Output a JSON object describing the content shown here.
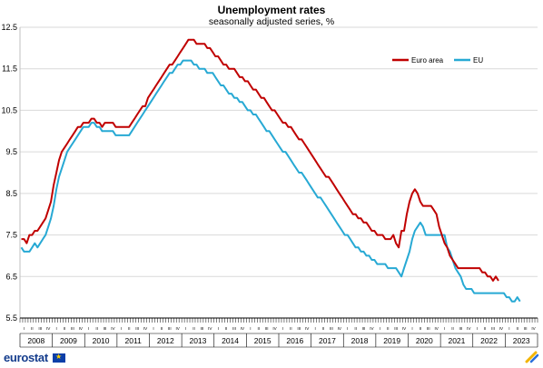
{
  "chart_data": {
    "type": "line",
    "title": "Unemployment rates",
    "subtitle": "seasonally adjusted series, %",
    "xlabel": "",
    "ylabel": "",
    "ylim": [
      5.5,
      12.5
    ],
    "yticks": [
      "12.5",
      "11.5",
      "10.5",
      "9.5",
      "8.5",
      "7.5",
      "6.5",
      "5.5"
    ],
    "grid": true,
    "legend_position": "top-right",
    "x_start": "2008-01",
    "frequency": "monthly",
    "years": [
      "2008",
      "2009",
      "2010",
      "2011",
      "2012",
      "2013",
      "2014",
      "2015",
      "2016",
      "2017",
      "2018",
      "2019",
      "2020",
      "2021",
      "2022",
      "2023"
    ],
    "quarter_labels": [
      "I",
      "II",
      "III",
      "IV"
    ],
    "series": [
      {
        "name": "Euro area",
        "color": "#c00000",
        "values": [
          7.4,
          7.4,
          7.3,
          7.5,
          7.5,
          7.6,
          7.6,
          7.7,
          7.8,
          7.9,
          8.1,
          8.3,
          8.7,
          9.0,
          9.3,
          9.5,
          9.6,
          9.7,
          9.8,
          9.9,
          10.0,
          10.1,
          10.1,
          10.2,
          10.2,
          10.2,
          10.3,
          10.3,
          10.2,
          10.2,
          10.1,
          10.2,
          10.2,
          10.2,
          10.2,
          10.1,
          10.1,
          10.1,
          10.1,
          10.1,
          10.1,
          10.2,
          10.3,
          10.4,
          10.5,
          10.6,
          10.6,
          10.8,
          10.9,
          11.0,
          11.1,
          11.2,
          11.3,
          11.4,
          11.5,
          11.6,
          11.6,
          11.7,
          11.8,
          11.9,
          12.0,
          12.1,
          12.2,
          12.2,
          12.2,
          12.1,
          12.1,
          12.1,
          12.1,
          12.0,
          12.0,
          11.9,
          11.8,
          11.8,
          11.7,
          11.6,
          11.6,
          11.5,
          11.5,
          11.5,
          11.4,
          11.3,
          11.3,
          11.2,
          11.2,
          11.1,
          11.0,
          11.0,
          10.9,
          10.8,
          10.8,
          10.7,
          10.6,
          10.5,
          10.5,
          10.4,
          10.3,
          10.2,
          10.2,
          10.1,
          10.1,
          10.0,
          9.9,
          9.8,
          9.8,
          9.7,
          9.6,
          9.5,
          9.4,
          9.3,
          9.2,
          9.1,
          9.0,
          8.9,
          8.9,
          8.8,
          8.7,
          8.6,
          8.5,
          8.4,
          8.3,
          8.2,
          8.1,
          8.0,
          8.0,
          7.9,
          7.9,
          7.8,
          7.8,
          7.7,
          7.6,
          7.6,
          7.5,
          7.5,
          7.5,
          7.4,
          7.4,
          7.4,
          7.5,
          7.3,
          7.2,
          7.6,
          7.6,
          8.0,
          8.3,
          8.5,
          8.6,
          8.5,
          8.3,
          8.2,
          8.2,
          8.2,
          8.2,
          8.1,
          8.0,
          7.7,
          7.5,
          7.3,
          7.2,
          7.0,
          6.9,
          6.8,
          6.7,
          6.7,
          6.7,
          6.7,
          6.7,
          6.7,
          6.7,
          6.7,
          6.7,
          6.6,
          6.6,
          6.5,
          6.5,
          6.4,
          6.5,
          6.4
        ]
      },
      {
        "name": "EU",
        "color": "#27a9d4",
        "values": [
          7.2,
          7.1,
          7.1,
          7.1,
          7.2,
          7.3,
          7.2,
          7.3,
          7.4,
          7.5,
          7.7,
          7.9,
          8.2,
          8.6,
          8.9,
          9.1,
          9.3,
          9.5,
          9.6,
          9.7,
          9.8,
          9.9,
          10.0,
          10.1,
          10.1,
          10.1,
          10.2,
          10.2,
          10.1,
          10.1,
          10.0,
          10.0,
          10.0,
          10.0,
          10.0,
          9.9,
          9.9,
          9.9,
          9.9,
          9.9,
          9.9,
          10.0,
          10.1,
          10.2,
          10.3,
          10.4,
          10.5,
          10.6,
          10.7,
          10.8,
          10.9,
          11.0,
          11.1,
          11.2,
          11.3,
          11.4,
          11.4,
          11.5,
          11.6,
          11.6,
          11.7,
          11.7,
          11.7,
          11.7,
          11.6,
          11.6,
          11.5,
          11.5,
          11.5,
          11.4,
          11.4,
          11.4,
          11.3,
          11.2,
          11.1,
          11.1,
          11.0,
          10.9,
          10.9,
          10.8,
          10.8,
          10.7,
          10.7,
          10.6,
          10.5,
          10.5,
          10.4,
          10.4,
          10.3,
          10.2,
          10.1,
          10.0,
          10.0,
          9.9,
          9.8,
          9.7,
          9.6,
          9.5,
          9.5,
          9.4,
          9.3,
          9.2,
          9.1,
          9.0,
          9.0,
          8.9,
          8.8,
          8.7,
          8.6,
          8.5,
          8.4,
          8.4,
          8.3,
          8.2,
          8.1,
          8.0,
          7.9,
          7.8,
          7.7,
          7.6,
          7.5,
          7.5,
          7.4,
          7.3,
          7.2,
          7.2,
          7.1,
          7.1,
          7.0,
          7.0,
          6.9,
          6.9,
          6.8,
          6.8,
          6.8,
          6.8,
          6.7,
          6.7,
          6.7,
          6.7,
          6.6,
          6.5,
          6.7,
          6.9,
          7.1,
          7.4,
          7.6,
          7.7,
          7.8,
          7.7,
          7.5,
          7.5,
          7.5,
          7.5,
          7.5,
          7.5,
          7.5,
          7.5,
          7.2,
          7.1,
          6.9,
          6.7,
          6.6,
          6.5,
          6.3,
          6.2,
          6.2,
          6.2,
          6.1,
          6.1,
          6.1,
          6.1,
          6.1,
          6.1,
          6.1,
          6.1,
          6.1,
          6.1,
          6.1,
          6.1,
          6.0,
          6.0,
          5.9,
          5.9,
          6.0,
          5.9
        ]
      }
    ]
  },
  "footer": {
    "logo_text": "eurostat",
    "flag_stars": "★"
  }
}
